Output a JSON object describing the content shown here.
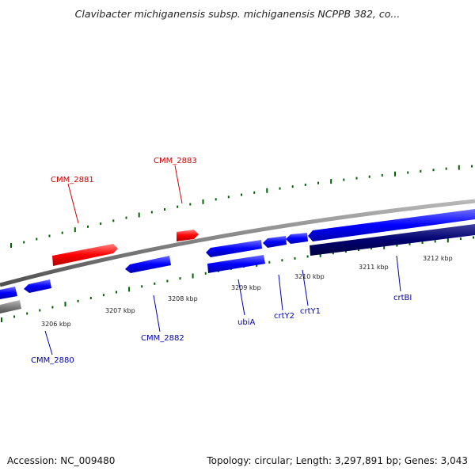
{
  "title": "Clavibacter michiganensis subsp. michiganensis NCPPB 382, co...",
  "accession": "Accession: NC_009480",
  "summary": "Topology: circular; Length: 3,297,891 bp; Genes: 3,043",
  "colors": {
    "forward_gene": "#ff0000",
    "reverse_gene": "#0000ff",
    "rna_or_pseudo": "#000070",
    "backbone": "#808080",
    "tick_marks": "#006400",
    "label_forward": "#cc0000",
    "label_reverse": "#0000aa"
  },
  "position_markers": [
    "3206 kbp",
    "3207 kbp",
    "3208 kbp",
    "3209 kbp",
    "3210 kbp",
    "3211 kbp",
    "3212 kbp"
  ],
  "gene_labels": [
    {
      "id": "CMM_2881",
      "strand": "forward"
    },
    {
      "id": "CMM_2883",
      "strand": "forward"
    },
    {
      "id": "CMM_2880",
      "strand": "reverse"
    },
    {
      "id": "CMM_2882",
      "strand": "reverse"
    },
    {
      "id": "ubiA",
      "strand": "reverse"
    },
    {
      "id": "crtY2",
      "strand": "reverse"
    },
    {
      "id": "crtY1",
      "strand": "reverse"
    },
    {
      "id": "crtBI",
      "strand": "reverse"
    }
  ]
}
